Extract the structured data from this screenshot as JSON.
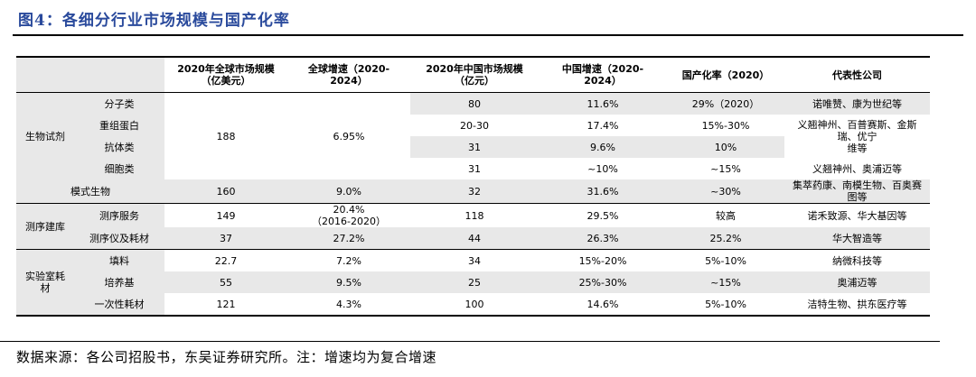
{
  "title": "图4：各细分行业市场规模与国产化率",
  "headers": {
    "category": "",
    "subcategory": "",
    "global_size": "2020年全球市场规模\n（亿美元）",
    "global_growth": "全球增速（2020-\n2024）",
    "china_size": "2020年中国市场规模\n（亿元）",
    "china_growth": "中国增速（2020-\n2024）",
    "localization": "国产化率（2020）",
    "companies": "代表性公司"
  },
  "groups": {
    "bio_reagents": "生物试剂",
    "model_organisms": "模式生物",
    "sequencing": "测序建库",
    "lab_consumables": "实验室耗\n材"
  },
  "rows": {
    "small_molecule": {
      "name": "分子类",
      "china_size": "80",
      "china_growth": "11.6%",
      "localization": "29%（2020）",
      "companies": "诺唯赞、康为世纪等"
    },
    "recombinant_protein": {
      "name": "重组蛋白",
      "china_size": "20-30",
      "china_growth": "17.4%",
      "localization": "15%-30%"
    },
    "antibody": {
      "name": "抗体类",
      "china_size": "31",
      "china_growth": "9.6%",
      "localization": "10%"
    },
    "cell": {
      "name": "细胞类",
      "china_size": "31",
      "china_growth": "~10%",
      "localization": "~15%",
      "companies": "义翘神州、奥浦迈等"
    },
    "bio_reagents_shared": {
      "global_size": "188",
      "global_growth": "6.95%",
      "companies_protein_antibody": "义翘神州、百普赛斯、金斯瑞、优宁\n维等"
    },
    "model_organisms": {
      "global_size": "160",
      "global_growth": "9.0%",
      "china_size": "32",
      "china_growth": "31.6%",
      "localization": "~30%",
      "companies": "集萃药康、南模生物、百奥赛图等"
    },
    "seq_service": {
      "name": "测序服务",
      "global_size": "149",
      "global_growth": "20.4%\n（2016-2020）",
      "china_size": "118",
      "china_growth": "29.5%",
      "localization": "较高",
      "companies": "诺禾致源、华大基因等"
    },
    "seq_instruments": {
      "name": "测序仪及耗材",
      "global_size": "37",
      "global_growth": "27.2%",
      "china_size": "44",
      "china_growth": "26.3%",
      "localization": "25.2%",
      "companies": "华大智造等"
    },
    "filler": {
      "name": "填料",
      "global_size": "22.7",
      "global_growth": "7.2%",
      "china_size": "34",
      "china_growth": "15%-20%",
      "localization": "5%-10%",
      "companies": "纳微科技等"
    },
    "culture_medium": {
      "name": "培养基",
      "global_size": "55",
      "global_growth": "9.5%",
      "china_size": "25",
      "china_growth": "25%-30%",
      "localization": "~15%",
      "companies": "奥浦迈等"
    },
    "disposables": {
      "name": "一次性耗材",
      "global_size": "121",
      "global_growth": "4.3%",
      "china_size": "100",
      "china_growth": "14.6%",
      "localization": "5%-10%",
      "companies": "洁特生物、拱东医疗等"
    }
  },
  "footer": "数据来源：各公司招股书，东吴证券研究所。注：增速均为复合增速",
  "colors": {
    "title": "#2a4a9c",
    "shade": "#e8e8e8"
  }
}
